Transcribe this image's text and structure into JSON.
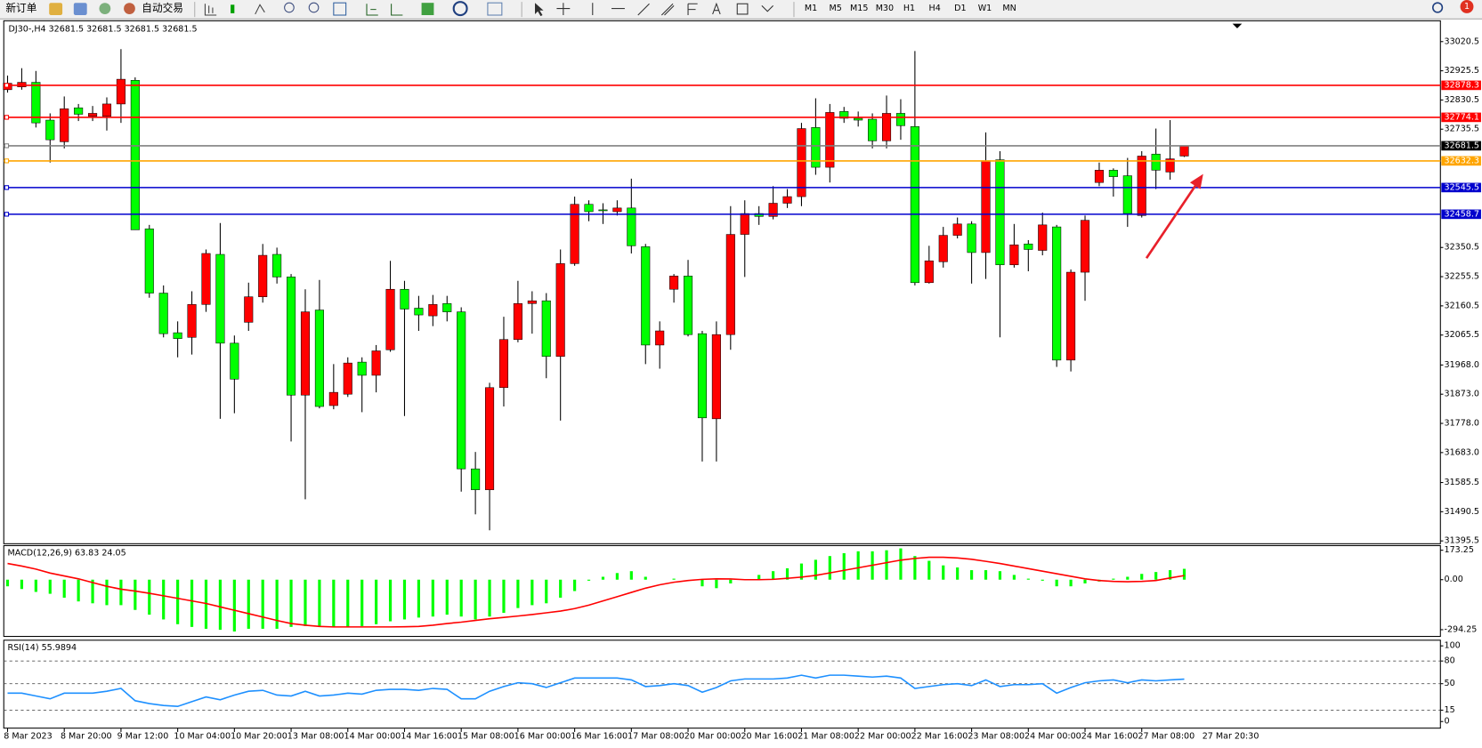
{
  "toolbar": {
    "new_order": "新订单",
    "auto_trading": "自动交易",
    "timeframes": [
      "M1",
      "M5",
      "M15",
      "M30",
      "H1",
      "H4",
      "D1",
      "W1",
      "MN"
    ],
    "badge": "1"
  },
  "chart_data": [
    {
      "type": "candlestick",
      "title": "DJ30-,H4 32681.5 32681.5 32681.5 32681.5",
      "up_color": "#ff0000",
      "down_color": "#00ff00",
      "categories": [
        "8 Mar 2023",
        null,
        null,
        null,
        "8 Mar 20:00",
        null,
        null,
        null,
        "9 Mar 12:00",
        null,
        null,
        null,
        "10 Mar 04:00",
        null,
        null,
        null,
        "10 Mar 20:00",
        null,
        null,
        null,
        "13 Mar 08:00",
        null,
        null,
        null,
        "14 Mar 00:00",
        null,
        null,
        null,
        "14 Mar 16:00",
        null,
        null,
        null,
        "15 Mar 08:00",
        null,
        null,
        null,
        "16 Mar 00:00",
        null,
        null,
        null,
        "16 Mar 16:00",
        null,
        null,
        null,
        "17 Mar 08:00",
        null,
        null,
        null,
        "20 Mar 00:00",
        null,
        null,
        null,
        "20 Mar 16:00",
        null,
        null,
        null,
        "21 Mar 08:00",
        null,
        null,
        null,
        "22 Mar 00:00",
        null,
        null,
        null,
        "22 Mar 16:00",
        null,
        null,
        null,
        "23 Mar 08:00",
        null,
        null,
        null,
        "24 Mar 00:00",
        null,
        null,
        null,
        "24 Mar 16:00",
        null,
        null,
        null,
        "27 Mar 08:00",
        null,
        null,
        null
      ],
      "time_marker": "27 Mar 20:30",
      "candles": [
        [
          32864,
          32910,
          32854.5,
          32885
        ],
        [
          32873,
          32934,
          32864,
          32888
        ],
        [
          32888,
          32925,
          32741,
          32756
        ],
        [
          32765,
          32787,
          32627,
          32701
        ],
        [
          32694.5,
          32842,
          32673,
          32802
        ],
        [
          32805,
          32817.5,
          32762,
          32784
        ],
        [
          32777.5,
          32811,
          32762,
          32787
        ],
        [
          32777.5,
          32839,
          32731,
          32817.5
        ],
        [
          32817.5,
          32996,
          32756,
          32898
        ],
        [
          32894.5,
          32904,
          32408,
          32408
        ],
        [
          32411,
          32424,
          32187,
          32202
        ],
        [
          32202,
          32227,
          32058,
          32070
        ],
        [
          32073,
          32110,
          31993,
          32054
        ],
        [
          32058,
          32208,
          32002,
          32165
        ],
        [
          32165,
          32344,
          32141,
          32331
        ],
        [
          32328,
          32430,
          31793,
          32039
        ],
        [
          32039,
          32064,
          31811,
          31922
        ],
        [
          32107,
          32236,
          32079,
          32190
        ],
        [
          32190,
          32362,
          32171,
          32325
        ],
        [
          32328,
          32350,
          32233,
          32254.5
        ],
        [
          32254.5,
          32264,
          31719,
          31870
        ],
        [
          31870,
          32214.5,
          31531,
          32141
        ],
        [
          32147,
          32245,
          31827,
          31833
        ],
        [
          31836,
          31971,
          31824,
          31879
        ],
        [
          31873,
          31993,
          31864,
          31974.5
        ],
        [
          31977.5,
          31993,
          31814.5,
          31934.5
        ],
        [
          31934.5,
          32033,
          31879,
          32014
        ],
        [
          32017.5,
          32307,
          32011,
          32214.5
        ],
        [
          32214.5,
          32242,
          31802,
          32150
        ],
        [
          32153,
          32193,
          32079,
          32131
        ],
        [
          32128,
          32196,
          32094.5,
          32165
        ],
        [
          32168,
          32193,
          32110,
          32141
        ],
        [
          32141,
          32156,
          31556,
          31630
        ],
        [
          31630,
          31685,
          31482,
          31562
        ],
        [
          31562,
          31910,
          31430,
          31894.5
        ],
        [
          31894.5,
          32125,
          31833,
          32051
        ],
        [
          32051,
          32242,
          32042,
          32168
        ],
        [
          32168,
          32208,
          32070,
          32177
        ],
        [
          32177,
          32202,
          31925,
          31996
        ],
        [
          31996,
          32344,
          31787,
          32298
        ],
        [
          32298,
          32516,
          32291,
          32491
        ],
        [
          32491,
          32504,
          32436,
          32467
        ],
        [
          32473,
          32494.5,
          32427,
          32470
        ],
        [
          32467,
          32504,
          32454.5,
          32479
        ],
        [
          32479,
          32574.5,
          32331,
          32356
        ],
        [
          32353,
          32362,
          31971,
          32033
        ],
        [
          32033,
          32110,
          31956,
          32079
        ],
        [
          32214.5,
          32264,
          32171,
          32257.5
        ],
        [
          32257.5,
          32310,
          32061,
          32067
        ],
        [
          32070,
          32079,
          31654,
          31796
        ],
        [
          31793,
          32110,
          31654,
          32067
        ],
        [
          32067,
          32485,
          32017.5,
          32393
        ],
        [
          32393,
          32504,
          32254.5,
          32461
        ],
        [
          32461,
          32485,
          32424,
          32451.5
        ],
        [
          32451.5,
          32550,
          32442,
          32494.5
        ],
        [
          32494.5,
          32540.6,
          32479,
          32516
        ],
        [
          32516,
          32756,
          32485,
          32737.5
        ],
        [
          32741,
          32836,
          32587,
          32611.5
        ],
        [
          32611.5,
          32817.5,
          32562,
          32790
        ],
        [
          32793,
          32808,
          32756,
          32771
        ],
        [
          32771,
          32793,
          32744,
          32765
        ],
        [
          32768,
          32787,
          32673,
          32697.5
        ],
        [
          32697.5,
          32845,
          32673,
          32787
        ],
        [
          32787,
          32833,
          32701,
          32747
        ],
        [
          32744,
          32990,
          32227,
          32236
        ],
        [
          32236,
          32356,
          32233,
          32307
        ],
        [
          32304,
          32417.5,
          32285,
          32390
        ],
        [
          32390,
          32448,
          32380,
          32427
        ],
        [
          32427,
          32436,
          32233,
          32334
        ],
        [
          32334,
          32725,
          32248,
          32633
        ],
        [
          32636,
          32664,
          32058,
          32294
        ],
        [
          32294,
          32427,
          32285,
          32359
        ],
        [
          32362,
          32374.5,
          32273,
          32344
        ],
        [
          32341,
          32464,
          32325,
          32424
        ],
        [
          32417.5,
          32424,
          31962,
          31984
        ],
        [
          31984,
          32279,
          31947,
          32270
        ],
        [
          32270,
          32454.5,
          32177,
          32439
        ],
        [
          32562,
          32627,
          32550,
          32602
        ],
        [
          32602,
          32608,
          32516,
          32581
        ],
        [
          32584,
          32642,
          32417.5,
          32461
        ],
        [
          32454.5,
          32664,
          32448,
          32648
        ],
        [
          32654.5,
          32737.5,
          32540.6,
          32602
        ],
        [
          32596,
          32765,
          32571,
          32639
        ],
        [
          32648,
          32682,
          32645,
          32681.5
        ]
      ],
      "ylim": [
        31386.3,
        33088.2
      ],
      "yticks": [
        {
          "value": 33020.5,
          "label": "33020.5"
        },
        {
          "value": 32925.5,
          "label": "32925.5"
        },
        {
          "value": 32830.5,
          "label": "32830.5"
        },
        {
          "value": 32735.5,
          "label": "32735.5"
        },
        {
          "value": 32350.5,
          "label": "32350.5"
        },
        {
          "value": 32255.5,
          "label": "32255.5"
        },
        {
          "value": 32160.5,
          "label": "32160.5"
        },
        {
          "value": 32065.5,
          "label": "32065.5"
        },
        {
          "value": 31968,
          "label": "31968.0"
        },
        {
          "value": 31873,
          "label": "31873.0"
        },
        {
          "value": 31778,
          "label": "31778.0"
        },
        {
          "value": 31683,
          "label": "31683.0"
        },
        {
          "value": 31585.5,
          "label": "31585.5"
        },
        {
          "value": 31490.5,
          "label": "31490.5"
        },
        {
          "value": 31395.5,
          "label": "31395.5"
        }
      ],
      "hlines": [
        {
          "value": 32878.3,
          "color": "#ff0000",
          "label_color": "#ff0000"
        },
        {
          "value": 32774.1,
          "color": "#ff0000",
          "label_color": "#ff0000"
        },
        {
          "value": 32681.5,
          "color": "#808080",
          "label_color": "#000000"
        },
        {
          "value": 32632.3,
          "color": "#ffa500",
          "label_color": "#ffa500"
        },
        {
          "value": 32545.5,
          "color": "#0000cd",
          "label_color": "#0000cd"
        },
        {
          "value": 32458.7,
          "color": "#0000cd",
          "label_color": "#0000cd"
        }
      ]
    },
    {
      "type": "macd",
      "title": "MACD(12,26,9) 63.83 24.05",
      "color": "#00ff00",
      "signal_color": "#ff0000",
      "values": [
        -39,
        -55,
        -72,
        -83,
        -106,
        -128,
        -139,
        -150,
        -150,
        -178,
        -206,
        -234,
        -262,
        -278,
        -289,
        -295,
        -305,
        -289,
        -289,
        -289,
        -278,
        -273,
        -278,
        -278,
        -278,
        -273,
        -262,
        -245,
        -234,
        -223,
        -217,
        -206,
        -217,
        -234,
        -217,
        -195,
        -167,
        -150,
        -139,
        -106,
        -67,
        -6,
        17,
        39,
        50,
        17,
        0,
        6,
        0,
        -39,
        -50,
        -22,
        0,
        28,
        50,
        67,
        95,
        117,
        139,
        156,
        167,
        167,
        173,
        184,
        139,
        111,
        84,
        72,
        56,
        56,
        50,
        28,
        6,
        -6,
        -39,
        -39,
        -22,
        -11,
        6,
        17,
        34,
        45,
        56,
        63.83
      ],
      "signal": [
        95,
        80,
        62,
        39,
        22,
        5,
        -17,
        -39,
        -56,
        -67,
        -80,
        -95,
        -110,
        -125,
        -140,
        -160,
        -180,
        -200,
        -220,
        -240,
        -258,
        -268,
        -275,
        -278,
        -278,
        -278,
        -278,
        -278,
        -277,
        -275,
        -268,
        -258,
        -250,
        -240,
        -230,
        -222,
        -214,
        -205,
        -195,
        -185,
        -170,
        -150,
        -125,
        -100,
        -75,
        -50,
        -30,
        -15,
        -5,
        2,
        5,
        4,
        0,
        0,
        2,
        8,
        15,
        25,
        40,
        55,
        70,
        85,
        100,
        115,
        125,
        132,
        132,
        128,
        120,
        108,
        95,
        80,
        65,
        50,
        35,
        20,
        5,
        -5,
        -10,
        -12,
        -10,
        -5,
        10,
        24.05
      ],
      "ylim": [
        -333.9,
        200.3
      ],
      "yticks": [
        173.25,
        {
          "value": 0,
          "label": "0.00"
        },
        -294.25
      ]
    },
    {
      "type": "line",
      "title": "RSI(14) 55.9894",
      "color": "#1e90ff",
      "values": [
        37.5,
        37.5,
        33.75,
        30,
        37.5,
        37.5,
        37.5,
        40,
        43.75,
        27.5,
        23.75,
        21.25,
        20,
        26.25,
        32.5,
        28.75,
        35,
        40,
        41.25,
        35,
        33.75,
        40,
        33.75,
        35,
        37.5,
        36.25,
        41.25,
        42.5,
        42.5,
        41.25,
        43.75,
        42.5,
        30,
        30,
        40,
        46.25,
        51.25,
        50,
        45,
        51.25,
        57.5,
        57.5,
        57.5,
        57.5,
        55,
        46.25,
        47.5,
        50,
        47.5,
        38.75,
        45,
        53.75,
        56.25,
        56.25,
        56.25,
        57.5,
        61.25,
        57.5,
        61.25,
        61.25,
        60,
        58.75,
        60,
        57.5,
        43.75,
        46.25,
        48.75,
        50,
        47.5,
        55,
        46.25,
        48.75,
        48.75,
        50,
        37.5,
        45,
        51.25,
        53.75,
        55,
        51.25,
        55,
        53.75,
        55,
        55.9894
      ],
      "ylim": [
        -8.75,
        107.5
      ],
      "yticks": [
        100,
        80,
        50,
        15,
        0
      ],
      "levels": [
        80,
        50,
        15
      ]
    }
  ]
}
